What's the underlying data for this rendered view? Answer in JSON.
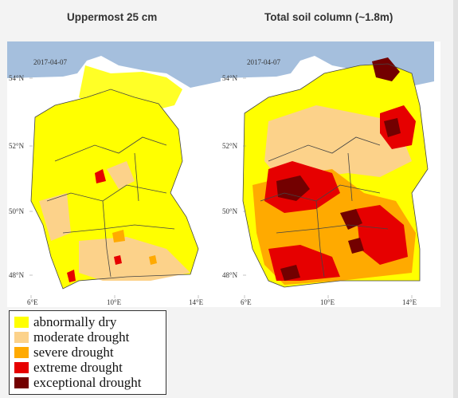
{
  "panels": [
    {
      "title": "Uppermost 25 cm",
      "date": "2017-04-07"
    },
    {
      "title": "Total soil column (~1.8m)",
      "date": "2017-04-07"
    }
  ],
  "lat_ticks": [
    "54°N",
    "52°N",
    "50°N",
    "48°N"
  ],
  "lon_ticks": [
    "6°E",
    "10°E",
    "14°E"
  ],
  "legend": [
    {
      "label": "abnormally dry",
      "color": "#ffff00"
    },
    {
      "label": "moderate drought",
      "color": "#fcd28a"
    },
    {
      "label": "severe drought",
      "color": "#ffaa00"
    },
    {
      "label": "extreme drought",
      "color": "#e60000"
    },
    {
      "label": "exceptional drought",
      "color": "#730000"
    }
  ],
  "colors": {
    "sea": "#a5bfdd",
    "border": "#444444"
  }
}
